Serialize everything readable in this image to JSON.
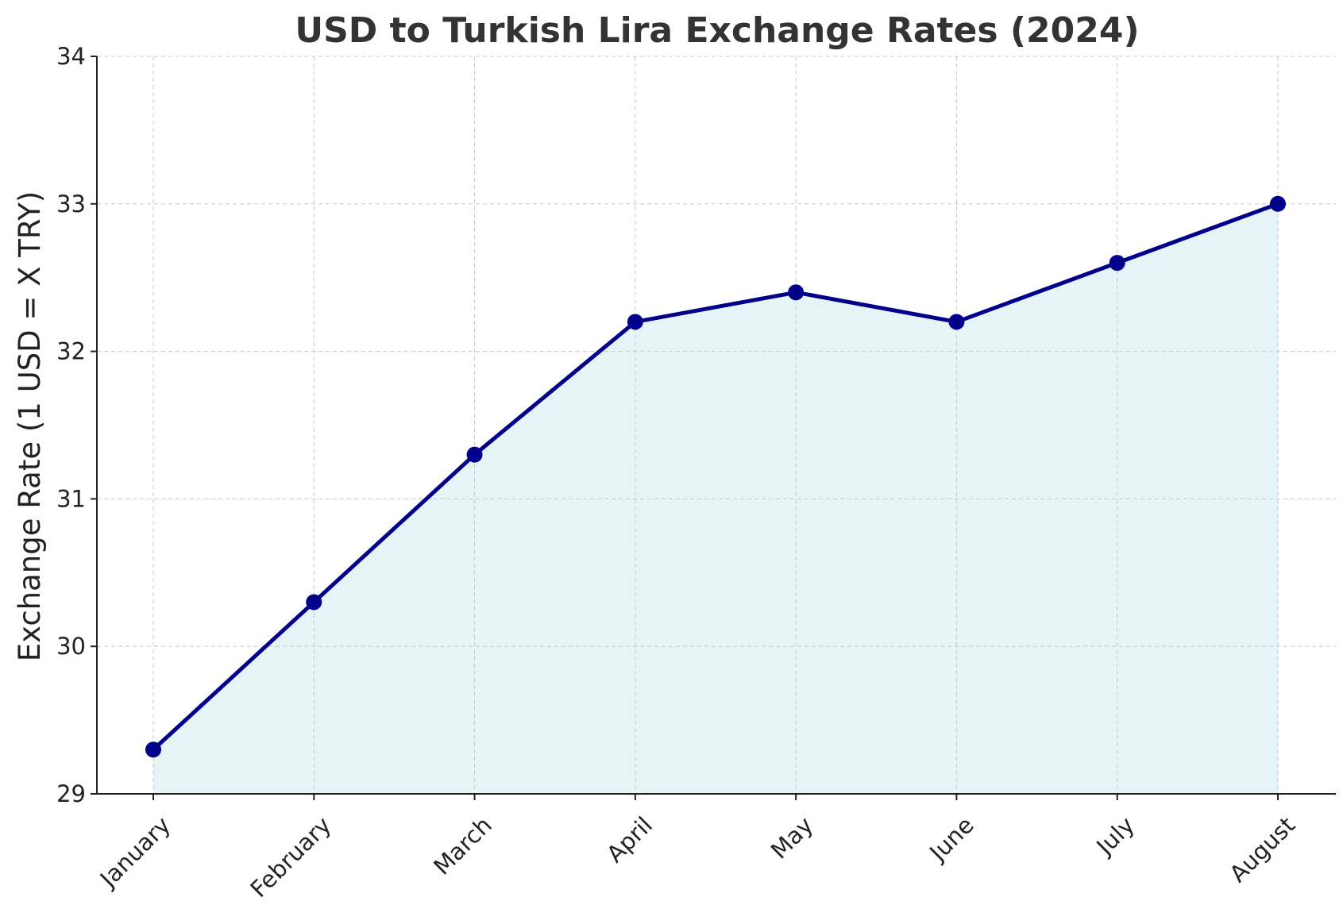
{
  "chart_data": {
    "type": "line",
    "title": "USD to Turkish Lira Exchange Rates (2024)",
    "xlabel": "",
    "ylabel": "Exchange Rate (1 USD = X TRY)",
    "categories": [
      "January",
      "February",
      "March",
      "April",
      "May",
      "June",
      "July",
      "August"
    ],
    "series": [
      {
        "values": [
          29.3,
          30.3,
          31.3,
          32.2,
          32.4,
          32.2,
          32.6,
          33.0
        ]
      }
    ],
    "ylim": [
      29,
      34
    ],
    "yticks": [
      "29",
      "30",
      "31",
      "32",
      "33",
      "34"
    ],
    "grid": true,
    "area_fill": true,
    "colors": {
      "line": "#00008b",
      "fill": "#add8e6",
      "marker": "#00008b"
    }
  }
}
